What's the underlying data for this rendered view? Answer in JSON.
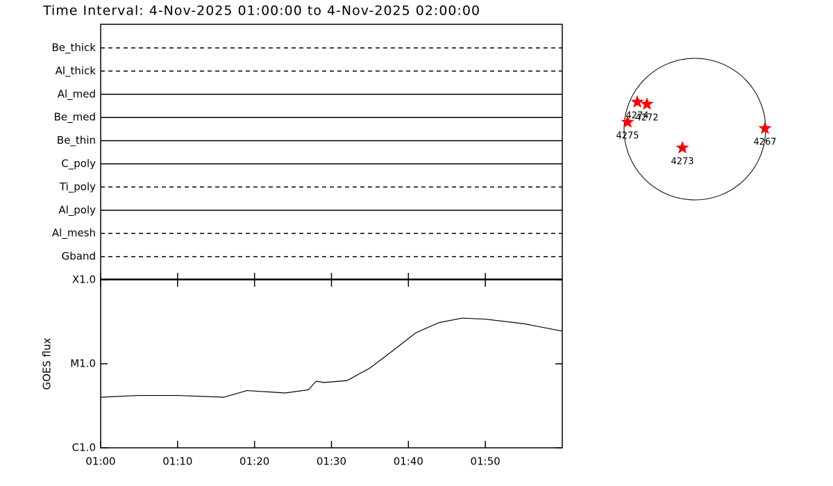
{
  "title": "Time Interval:  4-Nov-2025 01:00:00 to  4-Nov-2025 02:00:00",
  "filters": [
    {
      "name": "Be_thick",
      "style": "dashed"
    },
    {
      "name": "Al_thick",
      "style": "dashed"
    },
    {
      "name": "Al_med",
      "style": "solid"
    },
    {
      "name": "Be_med",
      "style": "solid"
    },
    {
      "name": "Be_thin",
      "style": "solid"
    },
    {
      "name": "C_poly",
      "style": "solid"
    },
    {
      "name": "Ti_poly",
      "style": "dashed"
    },
    {
      "name": "Al_poly",
      "style": "solid"
    },
    {
      "name": "Al_mesh",
      "style": "dashed"
    },
    {
      "name": "Gband",
      "style": "dashed"
    }
  ],
  "chart_data": {
    "type": "line",
    "y_label": "GOES flux",
    "log_scale": true,
    "color": "#000000",
    "x": [
      0,
      5,
      10,
      16,
      19,
      24,
      27,
      28,
      29,
      32,
      35,
      38,
      41,
      44,
      47,
      50,
      55,
      60
    ],
    "values": [
      4e-06,
      4.2e-06,
      4.2e-06,
      4e-06,
      4.8e-06,
      4.5e-06,
      4.9e-06,
      6.2e-06,
      6e-06,
      6.3e-06,
      8.9e-06,
      1.44e-05,
      2.35e-05,
      3.1e-05,
      3.5e-05,
      3.4e-05,
      3e-05,
      2.45e-05
    ],
    "xlim": [
      0,
      60
    ],
    "xticks": [
      {
        "value": 0,
        "label": "01:00"
      },
      {
        "value": 10,
        "label": "01:10"
      },
      {
        "value": 20,
        "label": "01:20"
      },
      {
        "value": 30,
        "label": "01:30"
      },
      {
        "value": 40,
        "label": "01:40"
      },
      {
        "value": 50,
        "label": "01:50"
      }
    ],
    "ylim": [
      1e-06,
      0.0001
    ],
    "yticks": [
      {
        "value": 1e-06,
        "label": "C1.0"
      },
      {
        "value": 1e-05,
        "label": "M1.0"
      },
      {
        "value": 0.0001,
        "label": "X1.0"
      }
    ]
  },
  "sun": {
    "disk_radius": 975,
    "marker_color": "#ff0000",
    "regions": [
      {
        "label": "4274",
        "solar_x": -793,
        "solar_y": 373
      },
      {
        "label": "4272",
        "solar_x": -660,
        "solar_y": 344
      },
      {
        "label": "4275",
        "solar_x": -927,
        "solar_y": 96
      },
      {
        "label": "4273",
        "solar_x": -172,
        "solar_y": -258
      },
      {
        "label": "4267",
        "solar_x": 965,
        "solar_y": 10
      }
    ]
  }
}
